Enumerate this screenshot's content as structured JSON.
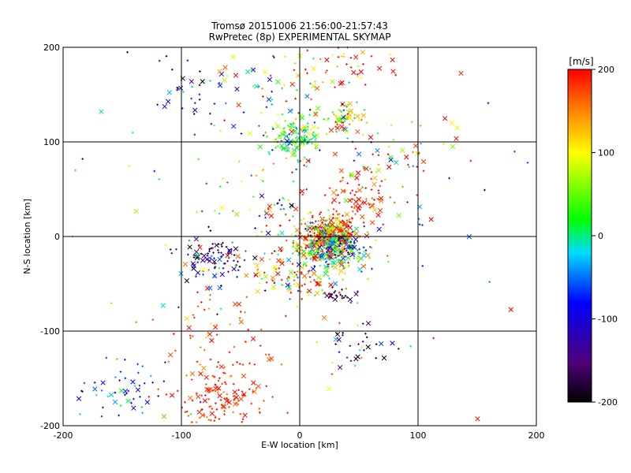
{
  "chart_data": {
    "type": "scatter",
    "title": "Tromsø 20151006 21:56:00-21:57:43",
    "subtitle": "RwPretec (8p) EXPERIMENTAL SKYMAP",
    "xlabel": "E-W location [km]",
    "ylabel": "N-S location [km]",
    "xlim": [
      -200,
      200
    ],
    "ylim": [
      -200,
      200
    ],
    "xticks": [
      -200,
      -100,
      0,
      100,
      200
    ],
    "yticks": [
      -200,
      -100,
      0,
      100,
      200
    ],
    "grid": true,
    "grid_lines_x": [
      -100,
      0,
      100
    ],
    "grid_lines_y": [
      -100,
      0,
      100
    ],
    "colorbar": {
      "label": "[m/s]",
      "range": [
        -200,
        200
      ],
      "ticks": [
        200,
        100,
        0,
        -100,
        -200
      ]
    },
    "markers": [
      "+",
      "x"
    ],
    "clusters": [
      {
        "x": 25,
        "y": 0,
        "sx": 12,
        "sy": 10,
        "n": 420,
        "v": 160,
        "vs": 90
      },
      {
        "x": 30,
        "y": -15,
        "sx": 15,
        "sy": 12,
        "n": 250,
        "v": -20,
        "vs": 90
      },
      {
        "x": -3,
        "y": 105,
        "sx": 10,
        "sy": 10,
        "n": 140,
        "v": 20,
        "vs": 60
      },
      {
        "x": 35,
        "y": 125,
        "sx": 10,
        "sy": 8,
        "n": 70,
        "v": 80,
        "vs": 70
      },
      {
        "x": 50,
        "y": 40,
        "sx": 15,
        "sy": 15,
        "n": 80,
        "v": 180,
        "vs": 30
      },
      {
        "x": -70,
        "y": -20,
        "sx": 15,
        "sy": 12,
        "n": 80,
        "v": -150,
        "vs": 60
      },
      {
        "x": -65,
        "y": -170,
        "sx": 20,
        "sy": 20,
        "n": 140,
        "v": 190,
        "vs": 20
      },
      {
        "x": -75,
        "y": -110,
        "sx": 25,
        "sy": 30,
        "n": 60,
        "v": 180,
        "vs": 30
      },
      {
        "x": -150,
        "y": -160,
        "sx": 20,
        "sy": 15,
        "n": 50,
        "v": -80,
        "vs": 70
      },
      {
        "x": 30,
        "y": 180,
        "sx": 25,
        "sy": 20,
        "n": 60,
        "v": 170,
        "vs": 50
      },
      {
        "x": 35,
        "y": -62,
        "sx": 6,
        "sy": 3,
        "n": 20,
        "v": -180,
        "vs": 15
      },
      {
        "x": -20,
        "y": 30,
        "sx": 25,
        "sy": 30,
        "n": 80,
        "v": 100,
        "vs": 120
      },
      {
        "x": -5,
        "y": -40,
        "sx": 20,
        "sy": 15,
        "n": 120,
        "v": 120,
        "vs": 90
      },
      {
        "x": 50,
        "y": -115,
        "sx": 12,
        "sy": 10,
        "n": 30,
        "v": -150,
        "vs": 80
      },
      {
        "x": -95,
        "y": 160,
        "sx": 15,
        "sy": 15,
        "n": 30,
        "v": -150,
        "vs": 70
      },
      {
        "x": 80,
        "y": 80,
        "sx": 25,
        "sy": 20,
        "n": 40,
        "v": 100,
        "vs": 120
      },
      {
        "x": -20,
        "y": 150,
        "sx": 30,
        "sy": 30,
        "n": 60,
        "v": 50,
        "vs": 120
      },
      {
        "x": 0,
        "y": 0,
        "sx": 90,
        "sy": 100,
        "n": 150,
        "v": 50,
        "vs": 140
      }
    ]
  }
}
